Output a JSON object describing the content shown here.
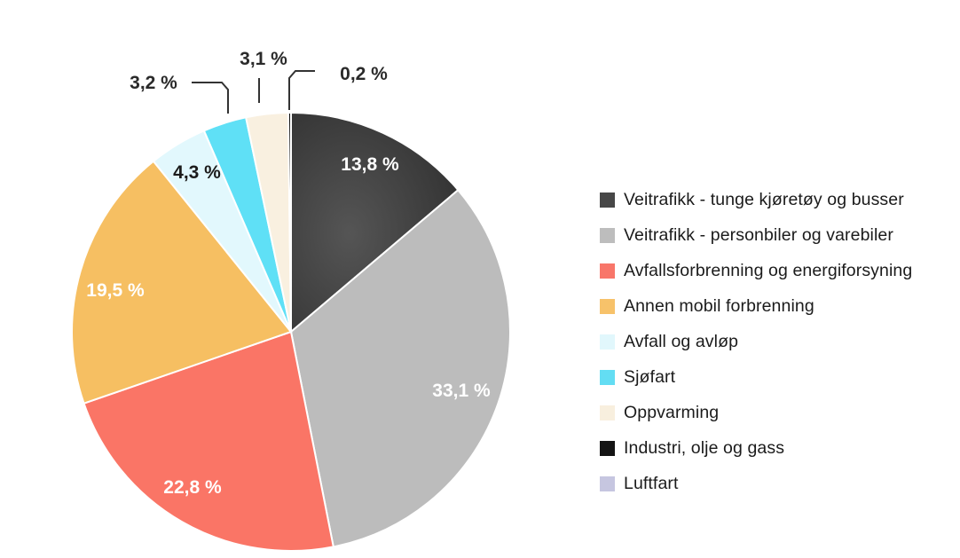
{
  "chart_data": {
    "type": "pie",
    "title": "",
    "start_angle_deg": 0,
    "direction": "clockwise",
    "categories": [
      "Veitrafikk - tunge kjøretøy og busser",
      "Veitrafikk - personbiler og varebiler",
      "Avfallsforbrenning og energiforsyning",
      "Annen mobil forbrenning",
      "Avfall og avløp",
      "Sjøfart",
      "Oppvarming",
      "Industri, olje og gass",
      "Luftfart"
    ],
    "values": [
      13.8,
      33.1,
      22.8,
      19.5,
      4.3,
      3.2,
      3.1,
      0.2,
      0.0
    ],
    "value_labels": [
      "13,8 %",
      "33,1 %",
      "22,8 %",
      "19,5 %",
      "4,3 %",
      "3,2 %",
      "3,1 %",
      "0,2 %",
      ""
    ],
    "colors": [
      "#3a3a3a",
      "#bcbcbc",
      "#fa7566",
      "#f6bf62",
      "#e2f8fd",
      "#5fe0f6",
      "#f9f0e0",
      "#111111",
      "#c6c6e0"
    ],
    "legend_position": "right"
  },
  "legend": {
    "items": [
      {
        "label": "Veitrafikk - tunge kjøretøy og busser",
        "color": "#474747"
      },
      {
        "label": "Veitrafikk - personbiler og varebiler",
        "color": "#bdbdbd"
      },
      {
        "label": "Avfallsforbrenning og energiforsyning",
        "color": "#f8766a"
      },
      {
        "label": "Annen mobil forbrenning",
        "color": "#f7c26a"
      },
      {
        "label": "Avfall og avløp",
        "color": "#e1f7fc"
      },
      {
        "label": "Sjøfart",
        "color": "#63ddf3"
      },
      {
        "label": "Oppvarming",
        "color": "#f8efde"
      },
      {
        "label": "Industri, olje og gass",
        "color": "#141414"
      },
      {
        "label": "Luftfart",
        "color": "#c6c6e0"
      }
    ]
  }
}
